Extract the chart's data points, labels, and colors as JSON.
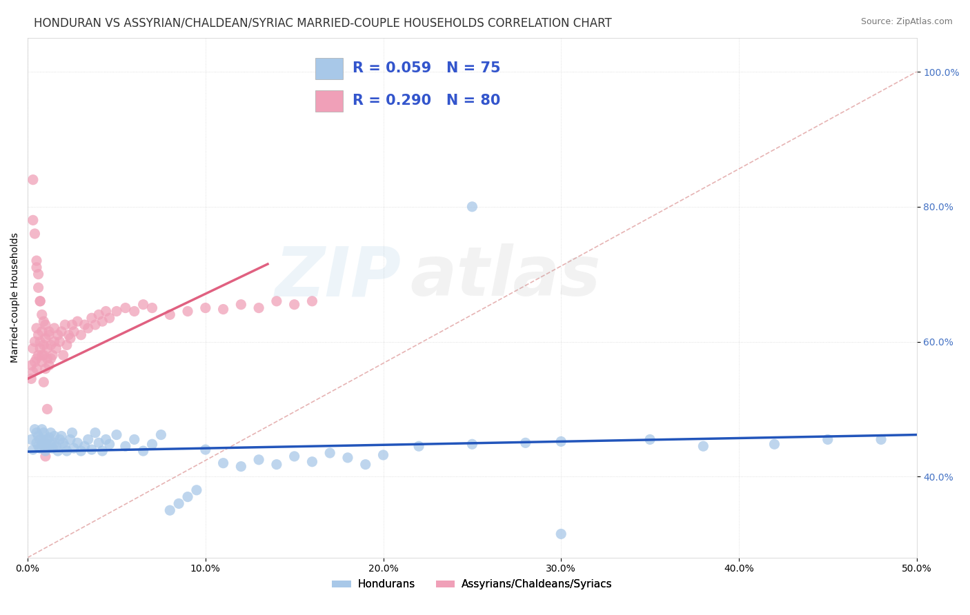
{
  "title": "HONDURAN VS ASSYRIAN/CHALDEAN/SYRIAC MARRIED-COUPLE HOUSEHOLDS CORRELATION CHART",
  "source": "Source: ZipAtlas.com",
  "ylabel": "Married-couple Households",
  "xlim": [
    0.0,
    0.5
  ],
  "ylim": [
    0.28,
    1.05
  ],
  "xticks": [
    0.0,
    0.1,
    0.2,
    0.3,
    0.4,
    0.5
  ],
  "xtick_labels": [
    "0.0%",
    "10.0%",
    "20.0%",
    "30.0%",
    "40.0%",
    "50.0%"
  ],
  "yticks": [
    0.4,
    0.6,
    0.8,
    1.0
  ],
  "ytick_labels": [
    "40.0%",
    "60.0%",
    "80.0%",
    "100.0%"
  ],
  "blue_scatter_color": "#A8C8E8",
  "blue_line_color": "#2255BB",
  "pink_scatter_color": "#F0A0B8",
  "pink_line_color": "#E06080",
  "ref_line_color": "#E0A0A0",
  "watermark_zip_color": "#88BBDD",
  "watermark_atlas_color": "#AAAAAA",
  "legend_R_blue": "R = 0.059",
  "legend_N_blue": "N = 75",
  "legend_R_pink": "R = 0.290",
  "legend_N_pink": "N = 80",
  "legend_label_blue": "Hondurans",
  "legend_label_pink": "Assyrians/Chaldeans/Syriacs",
  "title_fontsize": 12,
  "axis_label_fontsize": 10,
  "tick_fontsize": 10,
  "blue_trend_x": [
    0.0,
    0.5
  ],
  "blue_trend_y": [
    0.437,
    0.462
  ],
  "pink_trend_x": [
    0.0,
    0.135
  ],
  "pink_trend_y": [
    0.545,
    0.715
  ],
  "ref_line_x": [
    0.0,
    0.5
  ],
  "ref_line_y": [
    0.28,
    1.0
  ],
  "blue_scatter_x": [
    0.002,
    0.003,
    0.004,
    0.005,
    0.005,
    0.006,
    0.006,
    0.007,
    0.007,
    0.008,
    0.008,
    0.009,
    0.009,
    0.01,
    0.01,
    0.011,
    0.011,
    0.012,
    0.013,
    0.013,
    0.014,
    0.015,
    0.015,
    0.016,
    0.017,
    0.018,
    0.019,
    0.02,
    0.021,
    0.022,
    0.024,
    0.025,
    0.026,
    0.028,
    0.03,
    0.032,
    0.034,
    0.036,
    0.038,
    0.04,
    0.042,
    0.044,
    0.046,
    0.05,
    0.055,
    0.06,
    0.065,
    0.07,
    0.075,
    0.08,
    0.085,
    0.09,
    0.095,
    0.1,
    0.11,
    0.12,
    0.13,
    0.14,
    0.15,
    0.16,
    0.17,
    0.18,
    0.19,
    0.2,
    0.22,
    0.25,
    0.28,
    0.3,
    0.35,
    0.38,
    0.42,
    0.45,
    0.48,
    0.3,
    0.25
  ],
  "blue_scatter_y": [
    0.455,
    0.44,
    0.47,
    0.465,
    0.45,
    0.445,
    0.46,
    0.455,
    0.442,
    0.47,
    0.448,
    0.455,
    0.465,
    0.438,
    0.448,
    0.455,
    0.442,
    0.458,
    0.465,
    0.448,
    0.442,
    0.46,
    0.45,
    0.445,
    0.438,
    0.455,
    0.46,
    0.45,
    0.445,
    0.438,
    0.455,
    0.465,
    0.442,
    0.45,
    0.438,
    0.445,
    0.455,
    0.44,
    0.465,
    0.45,
    0.438,
    0.455,
    0.448,
    0.462,
    0.445,
    0.455,
    0.438,
    0.448,
    0.462,
    0.35,
    0.36,
    0.37,
    0.38,
    0.44,
    0.42,
    0.415,
    0.425,
    0.418,
    0.43,
    0.422,
    0.435,
    0.428,
    0.418,
    0.432,
    0.445,
    0.448,
    0.45,
    0.452,
    0.455,
    0.445,
    0.448,
    0.455,
    0.455,
    0.315,
    0.8
  ],
  "pink_scatter_x": [
    0.002,
    0.002,
    0.003,
    0.003,
    0.004,
    0.004,
    0.005,
    0.005,
    0.005,
    0.006,
    0.006,
    0.007,
    0.007,
    0.008,
    0.008,
    0.009,
    0.009,
    0.01,
    0.01,
    0.011,
    0.011,
    0.012,
    0.012,
    0.013,
    0.013,
    0.014,
    0.015,
    0.015,
    0.016,
    0.017,
    0.018,
    0.019,
    0.02,
    0.021,
    0.022,
    0.023,
    0.024,
    0.025,
    0.026,
    0.028,
    0.03,
    0.032,
    0.034,
    0.036,
    0.038,
    0.04,
    0.042,
    0.044,
    0.046,
    0.05,
    0.055,
    0.06,
    0.065,
    0.07,
    0.08,
    0.09,
    0.1,
    0.11,
    0.12,
    0.13,
    0.14,
    0.15,
    0.16,
    0.003,
    0.004,
    0.005,
    0.006,
    0.006,
    0.007,
    0.008,
    0.009,
    0.01,
    0.012,
    0.003,
    0.005,
    0.007,
    0.008,
    0.009,
    0.01,
    0.011
  ],
  "pink_scatter_y": [
    0.545,
    0.565,
    0.555,
    0.59,
    0.57,
    0.6,
    0.575,
    0.56,
    0.62,
    0.58,
    0.61,
    0.59,
    0.6,
    0.57,
    0.615,
    0.58,
    0.595,
    0.56,
    0.605,
    0.575,
    0.59,
    0.565,
    0.61,
    0.575,
    0.595,
    0.58,
    0.6,
    0.62,
    0.59,
    0.61,
    0.6,
    0.615,
    0.58,
    0.625,
    0.595,
    0.61,
    0.605,
    0.625,
    0.615,
    0.63,
    0.61,
    0.625,
    0.62,
    0.635,
    0.625,
    0.64,
    0.63,
    0.645,
    0.635,
    0.645,
    0.65,
    0.645,
    0.655,
    0.65,
    0.64,
    0.645,
    0.65,
    0.648,
    0.655,
    0.65,
    0.66,
    0.655,
    0.66,
    0.84,
    0.76,
    0.72,
    0.7,
    0.68,
    0.66,
    0.64,
    0.63,
    0.625,
    0.615,
    0.78,
    0.71,
    0.66,
    0.58,
    0.54,
    0.43,
    0.5
  ]
}
